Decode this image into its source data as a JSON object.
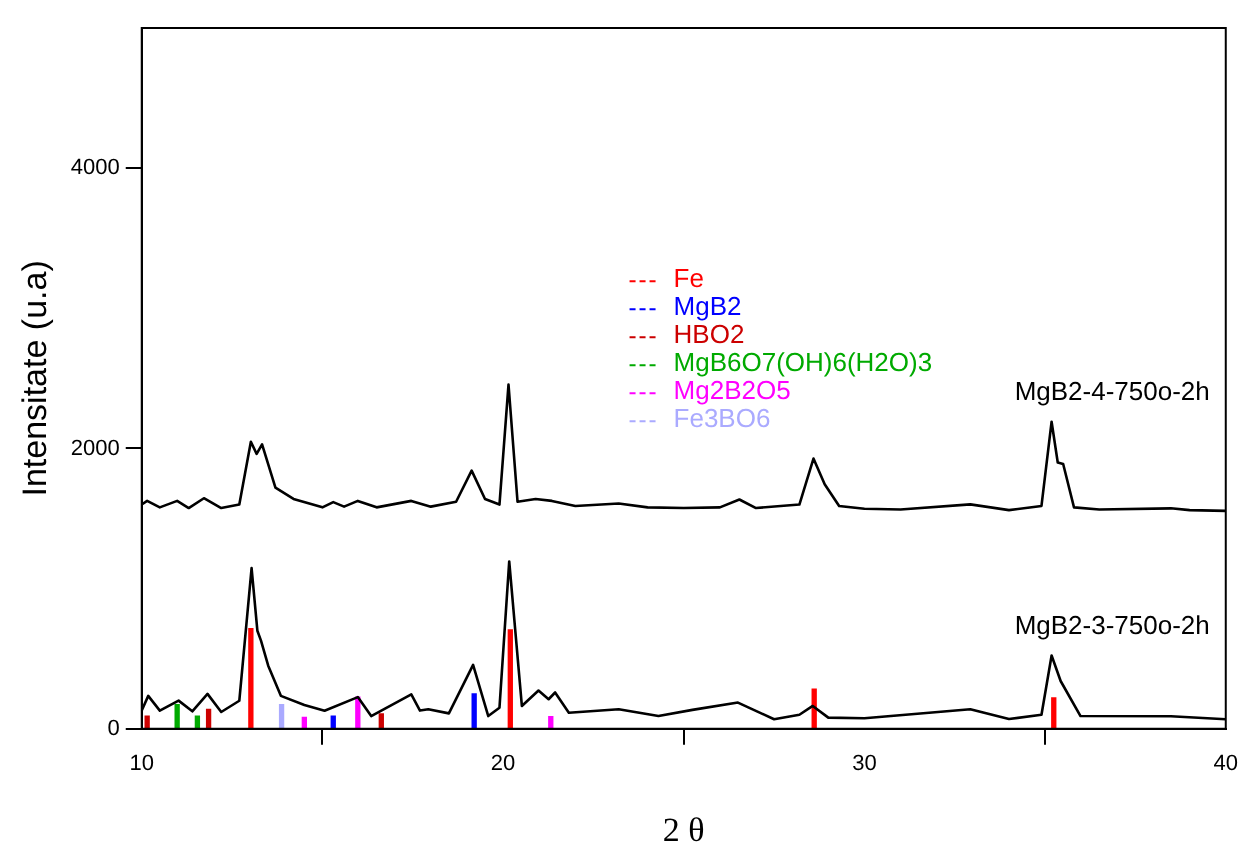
{
  "chart_data": {
    "type": "line",
    "xlabel": "2 θ",
    "ylabel": "Intensitate (u.a)",
    "xlim": [
      10,
      40
    ],
    "ylim": [
      0,
      5000
    ],
    "xticks": [
      10,
      20,
      30,
      40
    ],
    "yticks": [
      0,
      2000,
      4000
    ],
    "grid": false,
    "legend": "center",
    "marker": "none",
    "line_style": "solid",
    "series": [
      {
        "name": "MgB2-4-750o-2h",
        "color": "#000000",
        "x": [
          10,
          10.15,
          10.5,
          10.98,
          11.3,
          11.72,
          12.2,
          12.7,
          13.02,
          13.18,
          13.33,
          13.7,
          14.2,
          15,
          15.3,
          15.6,
          15.98,
          16.5,
          17.46,
          18,
          18.7,
          19.13,
          19.5,
          19.9,
          20.15,
          20.4,
          20.9,
          21.35,
          22,
          23.2,
          24,
          25,
          26,
          26.54,
          27,
          28.2,
          28.59,
          28.9,
          29.3,
          30,
          31,
          32.93,
          34,
          34.9,
          35.18,
          35.35,
          35.5,
          35.8,
          36.5,
          38.48,
          39,
          40
        ],
        "values": [
          1600,
          1626,
          1580,
          1626,
          1575,
          1645,
          1575,
          1600,
          2048,
          1961,
          2030,
          1720,
          1640,
          1580,
          1617,
          1585,
          1626,
          1580,
          1626,
          1585,
          1620,
          1842,
          1640,
          1600,
          2456,
          1620,
          1640,
          1626,
          1590,
          1607,
          1580,
          1575,
          1580,
          1636,
          1575,
          1600,
          1928,
          1745,
          1590,
          1570,
          1565,
          1601,
          1560,
          1590,
          2191,
          1900,
          1889,
          1580,
          1565,
          1573,
          1560,
          1555
        ]
      },
      {
        "name": "MgB2-3-750o-2h",
        "color": "#000000",
        "x": [
          10,
          10.18,
          10.5,
          11.02,
          11.4,
          11.82,
          12.2,
          12.7,
          13.04,
          13.2,
          13.3,
          13.5,
          13.85,
          14.5,
          15.06,
          15.98,
          16.35,
          17.46,
          17.7,
          17.93,
          18.5,
          19.17,
          19.59,
          19.9,
          20.17,
          20.52,
          20.98,
          21.26,
          21.44,
          21.82,
          23.2,
          24.3,
          25.24,
          26.5,
          27.5,
          28.2,
          28.57,
          29,
          30,
          32.93,
          34,
          34.9,
          35.18,
          35.43,
          35.98,
          38.48,
          40
        ],
        "values": [
          131,
          235,
          130,
          201,
          125,
          249,
          120,
          200,
          1147,
          700,
          629,
          450,
          235,
          170,
          129,
          226,
          91,
          245,
          130,
          139,
          110,
          456,
          91,
          150,
          1194,
          163,
          273,
          211,
          259,
          115,
          139,
          91,
          135,
          187,
          68,
          100,
          163,
          80,
          75,
          139,
          70,
          100,
          523,
          341,
          91,
          90,
          68
        ]
      },
      {
        "name": "Fe",
        "type": "bar",
        "color": "#ff0000",
        "x": [
          13.02,
          20.2,
          28.61,
          35.24
        ],
        "values": [
          715,
          705,
          283,
          220
        ]
      },
      {
        "name": "MgB2",
        "type": "bar",
        "color": "#0000ff",
        "x": [
          15.3,
          19.2
        ],
        "values": [
          90,
          249
        ]
      },
      {
        "name": "HBO2",
        "type": "bar",
        "color": "#cc0000",
        "x": [
          10.15,
          11.85,
          16.63
        ],
        "values": [
          91,
          139,
          106
        ]
      },
      {
        "name": "MgB6O7(OH)6(H2O)3",
        "type": "bar",
        "color": "#00aa00",
        "x": [
          10.98,
          11.54
        ],
        "values": [
          173,
          90
        ]
      },
      {
        "name": "Mg2B2O5",
        "type": "bar",
        "color": "#ff00ff",
        "x": [
          14.5,
          15.98,
          21.32
        ],
        "values": [
          82,
          226,
          86
        ]
      },
      {
        "name": "Fe3BO6",
        "type": "bar",
        "color": "#aaaaff",
        "x": [
          13.87
        ],
        "values": [
          173
        ]
      }
    ]
  }
}
